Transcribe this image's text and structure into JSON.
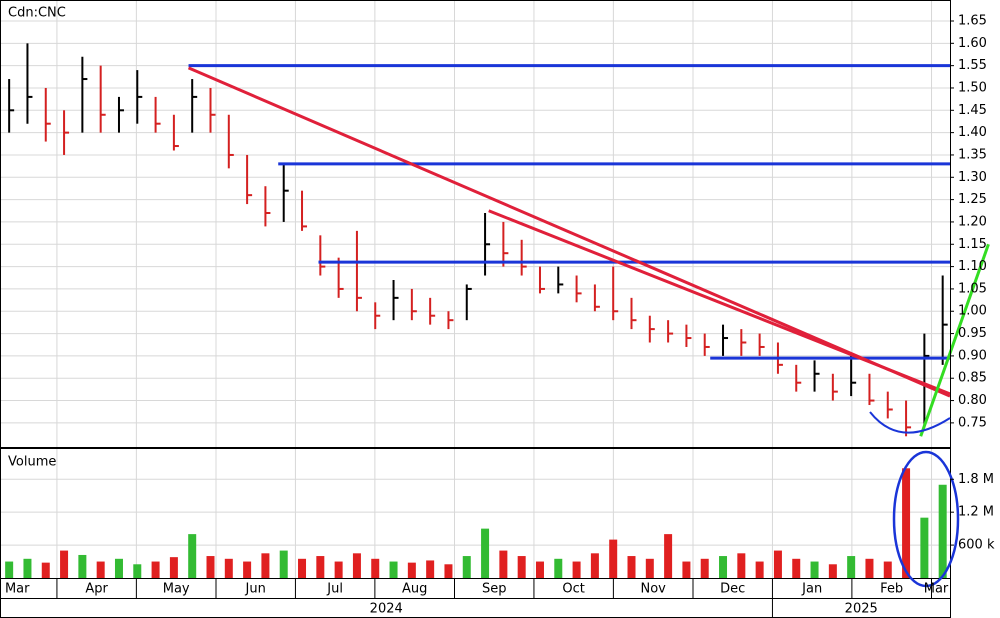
{
  "chart_data": {
    "type": "hlc",
    "title": "Cdn:CNC",
    "volume_title": "Volume",
    "high": [
      1.52,
      1.6,
      1.5,
      1.45,
      1.57,
      1.55,
      1.48,
      1.54,
      1.48,
      1.44,
      1.52,
      1.5,
      1.44,
      1.35,
      1.28,
      1.33,
      1.27,
      1.17,
      1.12,
      1.18,
      1.02,
      1.07,
      1.05,
      1.03,
      1.0,
      1.06,
      1.22,
      1.2,
      1.16,
      1.1,
      1.1,
      1.08,
      1.06,
      1.1,
      1.03,
      0.99,
      0.98,
      0.97,
      0.95,
      0.97,
      0.96,
      0.95,
      0.93,
      0.88,
      0.89,
      0.86,
      0.9,
      0.86,
      0.82,
      0.8,
      0.95,
      1.08
    ],
    "low": [
      1.4,
      1.42,
      1.38,
      1.35,
      1.4,
      1.4,
      1.4,
      1.42,
      1.4,
      1.36,
      1.4,
      1.4,
      1.32,
      1.24,
      1.19,
      1.2,
      1.18,
      1.08,
      1.03,
      1.0,
      0.96,
      0.98,
      0.98,
      0.97,
      0.96,
      0.98,
      1.08,
      1.1,
      1.08,
      1.04,
      1.04,
      1.02,
      1.0,
      0.98,
      0.96,
      0.93,
      0.93,
      0.92,
      0.9,
      0.9,
      0.9,
      0.9,
      0.86,
      0.82,
      0.82,
      0.8,
      0.81,
      0.79,
      0.76,
      0.72,
      0.74,
      0.88
    ],
    "close": [
      1.45,
      1.48,
      1.42,
      1.4,
      1.52,
      1.44,
      1.45,
      1.48,
      1.42,
      1.37,
      1.48,
      1.44,
      1.35,
      1.26,
      1.22,
      1.27,
      1.19,
      1.1,
      1.05,
      1.03,
      0.99,
      1.03,
      1.0,
      0.99,
      0.98,
      1.05,
      1.15,
      1.13,
      1.1,
      1.05,
      1.06,
      1.04,
      1.01,
      1.0,
      0.98,
      0.96,
      0.95,
      0.94,
      0.92,
      0.94,
      0.93,
      0.92,
      0.88,
      0.84,
      0.86,
      0.82,
      0.84,
      0.8,
      0.78,
      0.74,
      0.9,
      0.97
    ],
    "volume": [
      300000,
      350000,
      280000,
      500000,
      420000,
      300000,
      350000,
      250000,
      300000,
      380000,
      800000,
      400000,
      350000,
      300000,
      450000,
      500000,
      350000,
      400000,
      300000,
      450000,
      350000,
      300000,
      280000,
      320000,
      250000,
      400000,
      900000,
      500000,
      400000,
      300000,
      350000,
      300000,
      450000,
      700000,
      400000,
      350000,
      800000,
      300000,
      350000,
      400000,
      450000,
      300000,
      500000,
      350000,
      300000,
      250000,
      400000,
      350000,
      300000,
      2000000,
      1100000,
      1700000
    ],
    "up_color": "#000000",
    "down_color": "#d42020",
    "volume_up_color": "#33bb33",
    "volume_down_color": "#e02020",
    "xlim": [
      -0.5,
      51.4
    ],
    "ylim": [
      0.696,
      1.697
    ],
    "yticks": [
      0.75,
      {
        "value": 0.8,
        "label": "0.80"
      },
      0.85,
      {
        "value": 0.9,
        "label": "0.90"
      },
      0.95,
      {
        "value": 1,
        "label": "1.00"
      },
      1.05,
      {
        "value": 1.1,
        "label": "1.10"
      },
      1.15,
      {
        "value": 1.2,
        "label": "1.20"
      },
      1.25,
      {
        "value": 1.3,
        "label": "1.30"
      },
      1.35,
      {
        "value": 1.4,
        "label": "1.40"
      },
      1.45,
      {
        "value": 1.5,
        "label": "1.50"
      },
      1.55,
      {
        "value": 1.6,
        "label": "1.60"
      },
      1.65
    ],
    "vlim": [
      0,
      2370000
    ],
    "vticks": [
      {
        "value": 600000,
        "label": "600 k"
      },
      {
        "value": 1200000,
        "label": "1.2 M"
      },
      {
        "value": 1800000,
        "label": "1.8 M"
      }
    ],
    "month_ticks": [
      {
        "value": -1.73,
        "label": "Mar"
      },
      {
        "value": 2.61,
        "label": "Apr"
      },
      {
        "value": 6.95,
        "label": "May"
      },
      {
        "value": 11.3,
        "label": "Jun"
      },
      {
        "value": 15.64,
        "label": "Jul"
      },
      {
        "value": 19.98,
        "label": "Aug"
      },
      {
        "value": 24.33,
        "label": "Sep"
      },
      {
        "value": 28.67,
        "label": "Oct"
      },
      {
        "value": 33.01,
        "label": "Nov"
      },
      {
        "value": 37.36,
        "label": "Dec"
      },
      {
        "value": 41.7,
        "label": "Jan"
      },
      {
        "value": 46.04,
        "label": "Feb"
      },
      {
        "value": 50.39,
        "label": "Mar"
      }
    ],
    "years": [
      "2024",
      "2025"
    ],
    "grid": true,
    "levels": [
      {
        "price": 1.55,
        "from": 9.8,
        "color": "#1a35d8"
      },
      {
        "price": 1.33,
        "from": 14.7,
        "color": "#1a35d8"
      },
      {
        "price": 1.11,
        "from": 16.9,
        "color": "#1a35d8"
      },
      {
        "price": 0.895,
        "from": 38.3,
        "color": "#1a35d8"
      }
    ],
    "trendlines": [
      {
        "x": [
          9.8,
          51.4
        ],
        "y": [
          1.545,
          0.81
        ],
        "color": "#e0203a"
      },
      {
        "x": [
          26.2,
          51.4
        ],
        "y": [
          1.225,
          0.815
        ],
        "color": "#e0203a"
      },
      {
        "x": [
          49.8,
          53.5
        ],
        "y": [
          0.72,
          1.15
        ],
        "color": "#33dd22"
      }
    ]
  }
}
